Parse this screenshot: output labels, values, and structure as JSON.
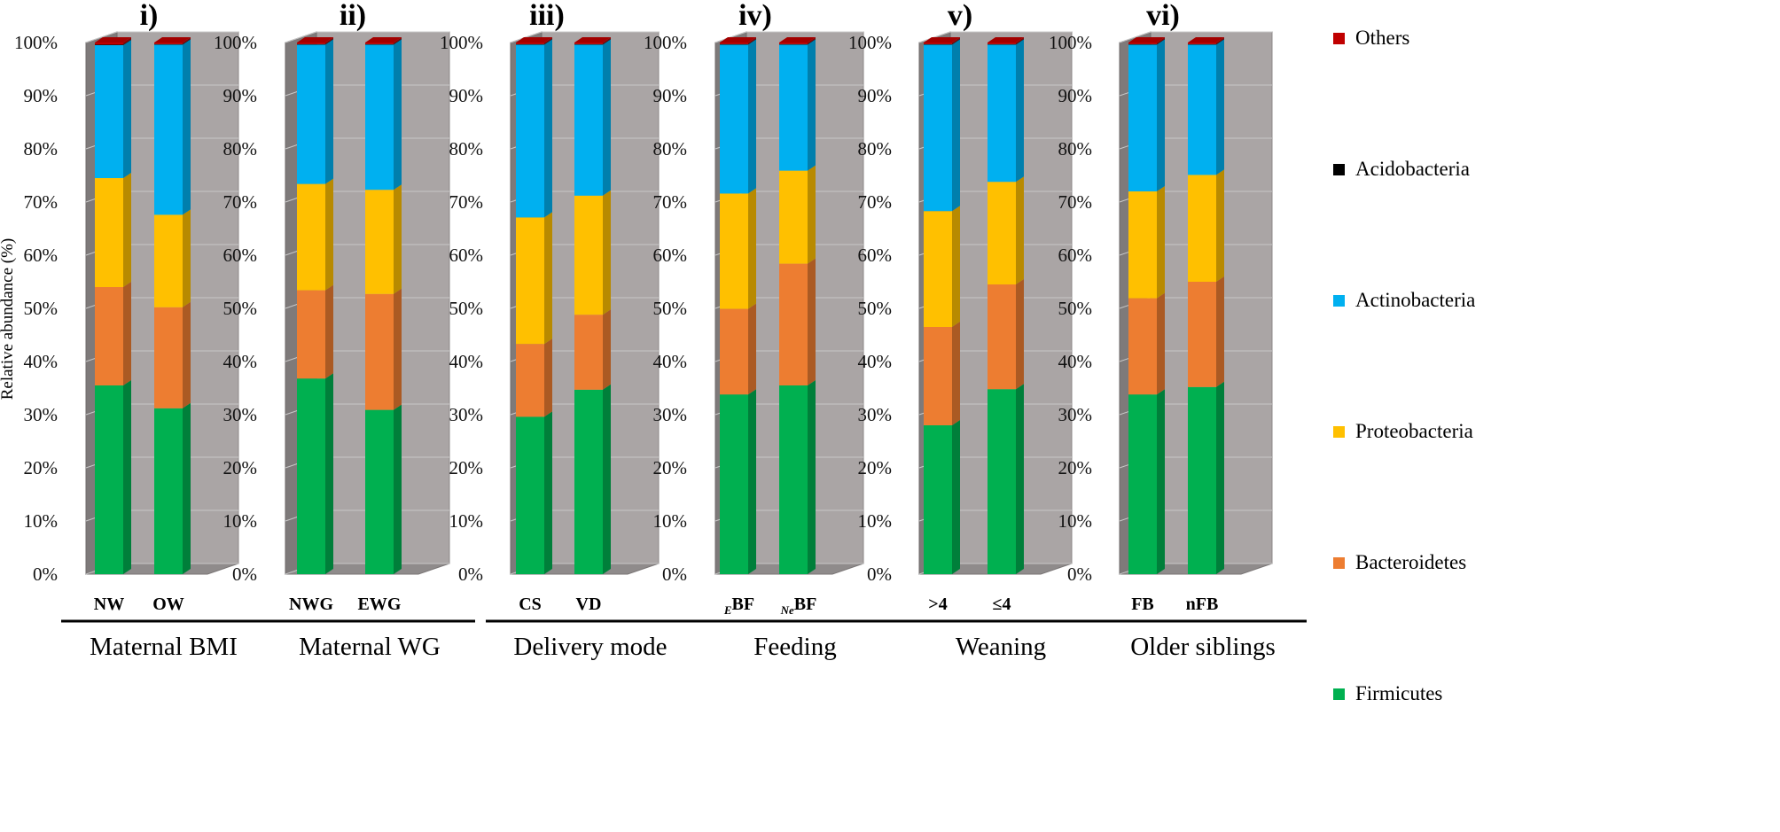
{
  "chart_data": {
    "type": "bar",
    "stacked": true,
    "ylabel": "Relative abundance (%)",
    "ylim": [
      0,
      100
    ],
    "ytick_labels": [
      "0%",
      "10%",
      "20%",
      "30%",
      "40%",
      "50%",
      "60%",
      "70%",
      "80%",
      "90%",
      "100%"
    ],
    "legend_position": "right",
    "series_names": [
      "Firmicutes",
      "Bacteroidetes",
      "Proteobacteria",
      "Actinobacteria",
      "Acidobacteria",
      "Others"
    ],
    "legend_order": [
      "Others",
      "Acidobacteria",
      "Actinobacteria",
      "Proteobacteria",
      "Bacteroidetes",
      "Firmicutes"
    ],
    "colors": {
      "Firmicutes": "#00b050",
      "Bacteroidetes": "#ed7d31",
      "Proteobacteria": "#ffc000",
      "Actinobacteria": "#00b0f0",
      "Acidobacteria": "#000000",
      "Others": "#c00000"
    },
    "panels": [
      {
        "title": "i)",
        "group": "Maternal BMI",
        "categories": [
          {
            "label": "NW",
            "values": [
              35.5,
              18.5,
              20.5,
              25,
              0.1,
              0.4
            ]
          },
          {
            "label": "OW",
            "values": [
              31.2,
              19,
              17.4,
              32,
              0.1,
              0.3
            ]
          }
        ]
      },
      {
        "title": "ii)",
        "group": "Maternal WG",
        "categories": [
          {
            "label": "NWG",
            "values": [
              36.8,
              16.6,
              20,
              26.2,
              0.1,
              0.3
            ]
          },
          {
            "label": "EWG",
            "values": [
              30.9,
              21.8,
              19.6,
              27.3,
              0.1,
              0.3
            ]
          }
        ]
      },
      {
        "title": "iii)",
        "group": "Delivery mode",
        "categories": [
          {
            "label": "CS",
            "values": [
              29.6,
              13.7,
              23.8,
              32.5,
              0.1,
              0.3
            ]
          },
          {
            "label": "VD",
            "values": [
              34.7,
              14.1,
              22.4,
              28.4,
              0.1,
              0.3
            ]
          }
        ]
      },
      {
        "title": "iv)",
        "group": "Feeding",
        "categories": [
          {
            "label": "BF",
            "prefix": "E",
            "values": [
              33.8,
              16.1,
              21.7,
              28,
              0.1,
              0.3
            ]
          },
          {
            "label": "BF",
            "prefix": "Ne",
            "values": [
              35.5,
              22.9,
              17.5,
              23.7,
              0.1,
              0.3
            ]
          }
        ]
      },
      {
        "title": "v)",
        "group": "Weaning",
        "categories": [
          {
            "label": ">4",
            "values": [
              28,
              18.5,
              21.8,
              31.3,
              0.1,
              0.3
            ]
          },
          {
            "label": "≤4",
            "values": [
              34.8,
              19.7,
              19.3,
              25.8,
              0.1,
              0.3
            ]
          }
        ]
      },
      {
        "title": "vi)",
        "group": "Older siblings",
        "categories": [
          {
            "label": "FB",
            "values": [
              33.8,
              18.1,
              20.1,
              27.6,
              0.1,
              0.3
            ]
          },
          {
            "label": "nFB",
            "values": [
              35.2,
              19.8,
              20.1,
              24.5,
              0.1,
              0.3
            ]
          }
        ]
      }
    ]
  }
}
